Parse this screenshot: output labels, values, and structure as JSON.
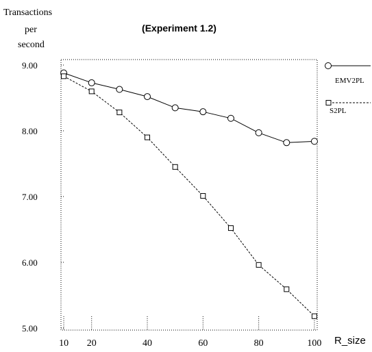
{
  "chart_data": {
    "type": "line",
    "title": "(Experiment 1.2)",
    "ylabel_lines": [
      "Transactions",
      "per",
      "second"
    ],
    "xlabel": "R_size",
    "xlim": [
      9,
      101
    ],
    "ylim": [
      5.0,
      9.0
    ],
    "x_ticks": [
      10,
      20,
      40,
      60,
      80,
      100
    ],
    "x_tick_labels": [
      "10",
      "20",
      "40",
      "60",
      "80",
      "100"
    ],
    "y_ticks": [
      5.0,
      6.0,
      7.0,
      8.0,
      9.0
    ],
    "y_tick_labels": [
      "5.00",
      "6.00",
      "7.00",
      "8.00",
      "9.00"
    ],
    "grid": false,
    "legend_position": "right",
    "series": [
      {
        "name": "EMV2PL",
        "marker": "circle",
        "line_style": "solid",
        "color": "#000000",
        "x": [
          10,
          20,
          30,
          40,
          50,
          60,
          70,
          80,
          90,
          100
        ],
        "y": [
          8.88,
          8.73,
          8.63,
          8.52,
          8.35,
          8.29,
          8.19,
          7.97,
          7.82,
          7.84
        ]
      },
      {
        "name": "S2PL",
        "marker": "square",
        "line_style": "dashed",
        "color": "#000000",
        "x": [
          10,
          20,
          30,
          40,
          50,
          60,
          70,
          80,
          90,
          100
        ],
        "y": [
          8.83,
          8.6,
          8.28,
          7.9,
          7.45,
          7.01,
          6.52,
          5.96,
          5.59,
          5.18
        ]
      }
    ]
  }
}
